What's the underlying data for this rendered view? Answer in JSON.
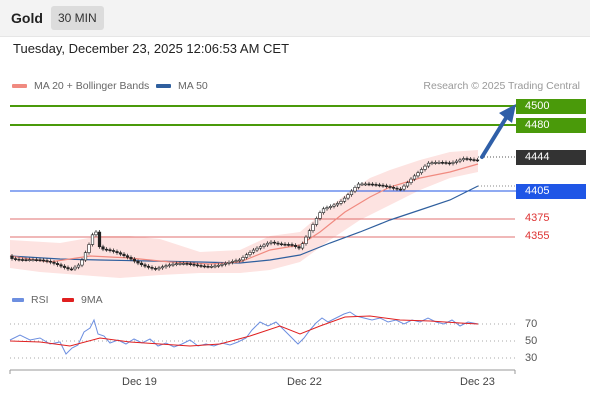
{
  "header": {
    "instrument": "Gold",
    "timeframe": "30 MIN"
  },
  "datetime": "Tuesday, December 23, 2025 12:06:53 AM CET",
  "legend": {
    "ma20": {
      "label": "MA 20 + Bollinger Bands",
      "color": "#f08a80"
    },
    "ma50": {
      "label": "MA 50",
      "color": "#2f5f9e"
    }
  },
  "credit": "Research © 2025 Trading Central",
  "levels": {
    "resistance": [
      {
        "value": "4500",
        "color": "#4a9a0a"
      },
      {
        "value": "4480",
        "color": "#4a9a0a"
      }
    ],
    "pivot": {
      "value": "4405",
      "color": "#1f56e6"
    },
    "support": [
      {
        "value": "4375",
        "color": "#d33"
      },
      {
        "value": "4355",
        "color": "#d33"
      }
    ],
    "last": {
      "value": "4444",
      "color": "#333333"
    }
  },
  "oscillator": {
    "rsi_label": "RSI",
    "rsi_color": "#6d8fe0",
    "ma_label": "9MA",
    "ma_color": "#e02020",
    "levels": [
      "70",
      "50",
      "30"
    ]
  },
  "x_axis": [
    "Dec 19",
    "Dec 22",
    "Dec 23"
  ],
  "chart_data": {
    "type": "line",
    "title": "Gold",
    "timeframe": "30 MIN",
    "x_ticks": [
      "Dec 19",
      "Dec 22",
      "Dec 23"
    ],
    "price_levels": {
      "resistance": [
        4500,
        4480
      ],
      "pivot": 4405,
      "support": [
        4375,
        4355
      ],
      "last": 4444
    },
    "price_start": 4340,
    "price_end": 4444,
    "rsi_levels": [
      70,
      50,
      30
    ],
    "series": [
      {
        "name": "MA 20 + Bollinger Bands"
      },
      {
        "name": "MA 50"
      },
      {
        "name": "RSI"
      },
      {
        "name": "9MA"
      }
    ]
  }
}
